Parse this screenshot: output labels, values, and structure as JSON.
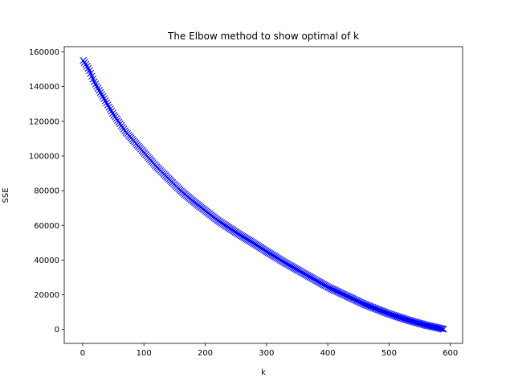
{
  "chart_data": {
    "type": "line",
    "title": "The Elbow method to show optimal of k",
    "xlabel": "k",
    "ylabel": "SSE",
    "xlim": [
      -30,
      620
    ],
    "ylim": [
      -8000,
      163000
    ],
    "xticks": [
      0,
      100,
      200,
      300,
      400,
      500,
      600
    ],
    "yticks": [
      0,
      20000,
      40000,
      60000,
      80000,
      100000,
      120000,
      140000,
      160000
    ],
    "grid": false,
    "marker": "x",
    "line_style": "solid",
    "series": [
      {
        "color": "#0000ff",
        "x": [
          1,
          10,
          20,
          30,
          40,
          50,
          60,
          70,
          80,
          90,
          100,
          120,
          140,
          160,
          180,
          200,
          220,
          250,
          280,
          300,
          330,
          360,
          400,
          430,
          460,
          500,
          530,
          560,
          589
        ],
        "y": [
          155000,
          150000,
          142000,
          136000,
          130000,
          124000,
          119000,
          114000,
          110000,
          106000,
          102000,
          94000,
          87000,
          80000,
          74000,
          68500,
          63000,
          56000,
          49500,
          45000,
          38500,
          32500,
          24500,
          19500,
          14500,
          9000,
          5500,
          2500,
          200
        ]
      }
    ]
  }
}
